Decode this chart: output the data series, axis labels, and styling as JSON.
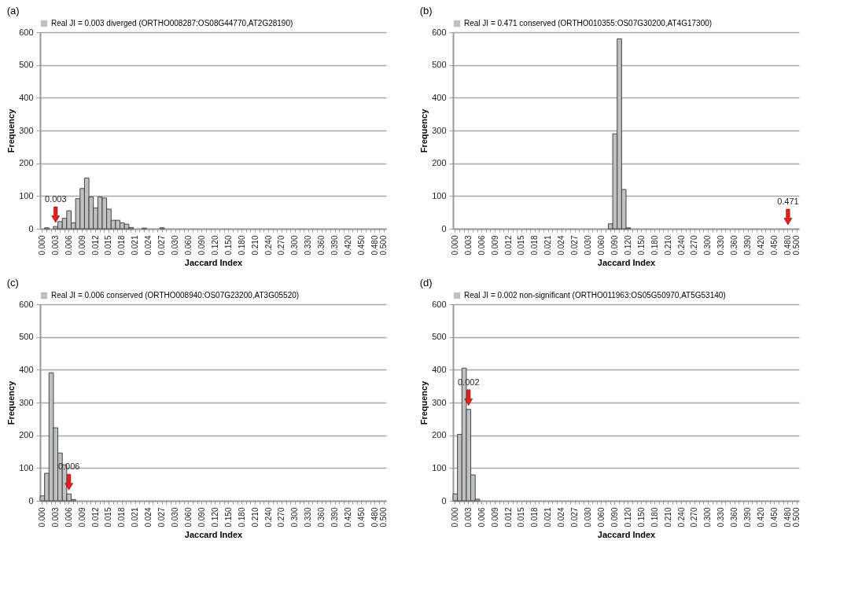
{
  "chart_data": [
    {
      "type": "bar",
      "title": "(a)",
      "xlabel": "Jaccard Index",
      "ylabel": "Frequency",
      "grid": "y",
      "legend": "top left",
      "ylim": [
        0,
        600
      ],
      "yticks": [
        0,
        100,
        200,
        300,
        400,
        500,
        600
      ],
      "categories": [
        "0.000",
        null,
        null,
        "0.003",
        null,
        null,
        "0.006",
        null,
        null,
        "0.009",
        null,
        null,
        "0.012",
        null,
        null,
        "0.015",
        null,
        null,
        "0.018",
        null,
        null,
        "0.021",
        null,
        null,
        "0.024",
        null,
        null,
        "0.027",
        null,
        null,
        "0.030",
        null,
        null,
        "0.060",
        null,
        null,
        "0.090",
        null,
        null,
        "0.120",
        null,
        null,
        "0.150",
        null,
        null,
        "0.180",
        null,
        null,
        "0.210",
        null,
        null,
        "0.240",
        null,
        null,
        "0.270",
        null,
        null,
        "0.300",
        null,
        null,
        "0.330",
        null,
        null,
        "0.360",
        null,
        null,
        "0.390",
        null,
        null,
        "0.420",
        null,
        null,
        "0.450",
        null,
        null,
        "0.480",
        null,
        "0.500"
      ],
      "series": [
        {
          "name": "Real JI = 0.003 diverged (ORTHO008287:OS08G44770,AT2G28190)",
          "color": "#c0c0c0",
          "values": [
            0,
            3,
            0,
            7,
            22,
            32,
            55,
            18,
            92,
            123,
            155,
            97,
            64,
            97,
            94,
            60,
            26,
            26,
            18,
            14,
            4,
            0,
            0,
            2,
            0,
            0,
            0,
            3,
            0,
            0,
            0,
            0,
            0,
            0,
            0,
            0,
            0,
            0,
            0,
            0,
            0,
            0,
            0,
            0,
            0,
            0,
            0,
            0,
            0,
            0,
            0,
            0,
            0,
            0,
            0,
            0,
            0,
            0,
            0,
            0,
            0,
            0,
            0,
            0,
            0,
            0,
            0,
            0,
            0,
            0,
            0,
            0,
            0,
            0,
            0,
            0,
            0,
            0
          ]
        }
      ],
      "annotations": [
        {
          "text": "0.003",
          "x": "0.003",
          "y": 7
        }
      ]
    },
    {
      "type": "bar",
      "title": "(b)",
      "xlabel": "Jaccard Index",
      "ylabel": "Frequency",
      "grid": "y",
      "legend": "top left",
      "ylim": [
        0,
        600
      ],
      "yticks": [
        0,
        100,
        200,
        300,
        400,
        500,
        600
      ],
      "categories": [
        "0.000",
        null,
        null,
        "0.003",
        null,
        null,
        "0.006",
        null,
        null,
        "0.009",
        null,
        null,
        "0.012",
        null,
        null,
        "0.015",
        null,
        null,
        "0.018",
        null,
        null,
        "0.021",
        null,
        null,
        "0.024",
        null,
        null,
        "0.027",
        null,
        null,
        "0.030",
        null,
        null,
        "0.060",
        null,
        null,
        "0.090",
        null,
        null,
        "0.120",
        null,
        null,
        "0.150",
        null,
        null,
        "0.180",
        null,
        null,
        "0.210",
        null,
        null,
        "0.240",
        null,
        null,
        "0.270",
        null,
        null,
        "0.300",
        null,
        null,
        "0.330",
        null,
        null,
        "0.360",
        null,
        null,
        "0.390",
        null,
        null,
        "0.420",
        null,
        null,
        "0.450",
        null,
        null,
        "0.480",
        null,
        "0.500"
      ],
      "series": [
        {
          "name": "Real JI = 0.471 conserved (ORTHO010355:OS07G30200,AT4G17300)",
          "color": "#c0c0c0",
          "values": [
            0,
            0,
            0,
            0,
            0,
            0,
            0,
            0,
            0,
            0,
            0,
            0,
            0,
            0,
            0,
            0,
            0,
            0,
            0,
            0,
            0,
            0,
            0,
            0,
            0,
            0,
            0,
            0,
            0,
            0,
            0,
            0,
            0,
            0,
            0,
            15,
            290,
            580,
            120,
            3,
            0,
            0,
            0,
            0,
            0,
            0,
            0,
            0,
            0,
            0,
            0,
            0,
            0,
            0,
            0,
            0,
            0,
            0,
            0,
            0,
            0,
            0,
            0,
            0,
            0,
            0,
            0,
            0,
            0,
            0,
            0,
            0,
            0,
            0,
            0,
            0,
            0,
            0
          ]
        }
      ],
      "annotations": [
        {
          "text": "0.471",
          "x": "0.480",
          "y": 0
        }
      ]
    },
    {
      "type": "bar",
      "title": "(c)",
      "xlabel": "Jaccard Index",
      "ylabel": "Frequency",
      "grid": "y",
      "legend": "top left",
      "ylim": [
        0,
        600
      ],
      "yticks": [
        0,
        100,
        200,
        300,
        400,
        500,
        600
      ],
      "categories": [
        "0.000",
        null,
        null,
        "0.003",
        null,
        null,
        "0.006",
        null,
        null,
        "0.009",
        null,
        null,
        "0.012",
        null,
        null,
        "0.015",
        null,
        null,
        "0.018",
        null,
        null,
        "0.021",
        null,
        null,
        "0.024",
        null,
        null,
        "0.027",
        null,
        null,
        "0.030",
        null,
        null,
        "0.060",
        null,
        null,
        "0.090",
        null,
        null,
        "0.120",
        null,
        null,
        "0.150",
        null,
        null,
        "0.180",
        null,
        null,
        "0.210",
        null,
        null,
        "0.240",
        null,
        null,
        "0.270",
        null,
        null,
        "0.300",
        null,
        null,
        "0.330",
        null,
        null,
        "0.360",
        null,
        null,
        "0.390",
        null,
        null,
        "0.420",
        null,
        null,
        "0.450",
        null,
        null,
        "0.480",
        null,
        "0.500"
      ],
      "series": [
        {
          "name": "Real JI = 0.006 conserved (ORTHO008940:OS07G23200,AT3G05520)",
          "color": "#c0c0c0",
          "values": [
            15,
            84,
            391,
            223,
            146,
            110,
            21,
            4,
            0,
            0,
            0,
            0,
            0,
            0,
            0,
            0,
            0,
            0,
            0,
            0,
            0,
            0,
            0,
            0,
            0,
            0,
            0,
            0,
            0,
            0,
            0,
            0,
            0,
            0,
            0,
            0,
            0,
            0,
            0,
            0,
            0,
            0,
            0,
            0,
            0,
            0,
            0,
            0,
            0,
            0,
            0,
            0,
            0,
            0,
            0,
            0,
            0,
            0,
            0,
            0,
            0,
            0,
            0,
            0,
            0,
            0,
            0,
            0,
            0,
            0,
            0,
            0,
            0,
            0,
            0,
            0,
            0,
            0
          ]
        }
      ],
      "annotations": [
        {
          "text": "0.006",
          "x": "0.006",
          "y": 21
        }
      ]
    },
    {
      "type": "bar",
      "title": "(d)",
      "xlabel": "Jaccard Index",
      "ylabel": "Frequency",
      "grid": "y",
      "legend": "top left",
      "ylim": [
        0,
        600
      ],
      "yticks": [
        0,
        100,
        200,
        300,
        400,
        500,
        600
      ],
      "categories": [
        "0.000",
        null,
        null,
        "0.003",
        null,
        null,
        "0.006",
        null,
        null,
        "0.009",
        null,
        null,
        "0.012",
        null,
        null,
        "0.015",
        null,
        null,
        "0.018",
        null,
        null,
        "0.021",
        null,
        null,
        "0.024",
        null,
        null,
        "0.027",
        null,
        null,
        "0.030",
        null,
        null,
        "0.060",
        null,
        null,
        "0.090",
        null,
        null,
        "0.120",
        null,
        null,
        "0.150",
        null,
        null,
        "0.180",
        null,
        null,
        "0.210",
        null,
        null,
        "0.240",
        null,
        null,
        "0.270",
        null,
        null,
        "0.300",
        null,
        null,
        "0.330",
        null,
        null,
        "0.360",
        null,
        null,
        "0.390",
        null,
        null,
        "0.420",
        null,
        null,
        "0.450",
        null,
        null,
        "0.480",
        null,
        "0.500"
      ],
      "series": [
        {
          "name": "Real JI = 0.002 non-significant (ORTHO011963:OS05G50970,AT5G53140)",
          "color": "#c0c0c0",
          "values": [
            21,
            203,
            405,
            279,
            79,
            5,
            0,
            0,
            0,
            0,
            0,
            0,
            0,
            0,
            0,
            0,
            0,
            0,
            0,
            0,
            0,
            0,
            0,
            0,
            0,
            0,
            0,
            0,
            0,
            0,
            0,
            0,
            0,
            0,
            0,
            0,
            0,
            0,
            0,
            0,
            0,
            0,
            0,
            0,
            0,
            0,
            0,
            0,
            0,
            0,
            0,
            0,
            0,
            0,
            0,
            0,
            0,
            0,
            0,
            0,
            0,
            0,
            0,
            0,
            0,
            0,
            0,
            0,
            0,
            0,
            0,
            0,
            0,
            0,
            0,
            0,
            0,
            0
          ]
        }
      ],
      "annotations": [
        {
          "text": "0.002",
          "x": "0.003",
          "y": 279
        }
      ]
    }
  ]
}
